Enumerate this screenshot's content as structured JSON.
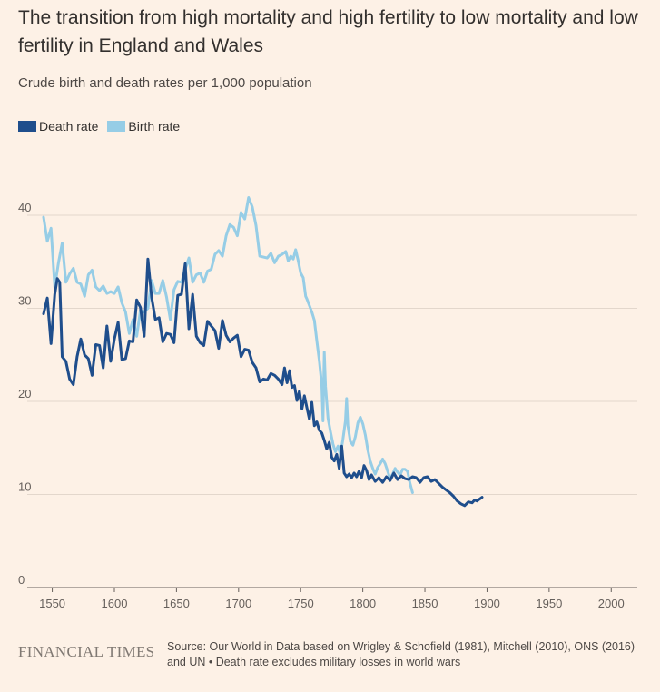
{
  "title": "The transition from high mortality and high fertility to low mortality and low fertility in England and Wales",
  "subtitle": "Crude birth and death rates per 1,000 population",
  "legend": {
    "death": "Death rate",
    "birth": "Birth rate"
  },
  "footer": {
    "logo": "FINANCIAL TIMES",
    "source": "Source: Our World in Data based on Wrigley & Schofield (1981), Mitchell (2010), ONS (2016) and UN • Death rate excludes military losses in world wars"
  },
  "colors": {
    "background": "#fdf1e6",
    "death": "#1f4e8c",
    "birth": "#96cde6",
    "grid": "#e3d7cc",
    "axis": "#66605c",
    "tick_text": "#66605c"
  },
  "chart_data": {
    "type": "line",
    "xlim": [
      1543,
      2021
    ],
    "ylim": [
      0,
      40
    ],
    "x_ticks": [
      1550,
      1600,
      1650,
      1700,
      1750,
      1800,
      1850,
      1900,
      1950,
      2000
    ],
    "y_ticks": [
      0,
      10,
      20,
      30,
      40
    ],
    "grid": true,
    "legend_position": "top-left",
    "series": [
      {
        "name": "Death rate",
        "key": "death",
        "points": [
          [
            1543,
            29.4
          ],
          [
            1546,
            31.1
          ],
          [
            1549,
            26.2
          ],
          [
            1552,
            31.5
          ],
          [
            1554,
            33.2
          ],
          [
            1556,
            32.8
          ],
          [
            1558,
            24.8
          ],
          [
            1561,
            24.3
          ],
          [
            1564,
            22.4
          ],
          [
            1567,
            21.8
          ],
          [
            1570,
            24.8
          ],
          [
            1573,
            26.7
          ],
          [
            1576,
            25.0
          ],
          [
            1579,
            24.6
          ],
          [
            1582,
            22.8
          ],
          [
            1585,
            26.1
          ],
          [
            1588,
            26.0
          ],
          [
            1591,
            23.6
          ],
          [
            1594,
            28.1
          ],
          [
            1597,
            24.3
          ],
          [
            1600,
            26.7
          ],
          [
            1603,
            28.5
          ],
          [
            1606,
            24.5
          ],
          [
            1609,
            24.6
          ],
          [
            1612,
            26.5
          ],
          [
            1615,
            26.4
          ],
          [
            1618,
            30.9
          ],
          [
            1621,
            30.1
          ],
          [
            1624,
            27.0
          ],
          [
            1627,
            35.3
          ],
          [
            1630,
            31.2
          ],
          [
            1633,
            28.8
          ],
          [
            1636,
            29.0
          ],
          [
            1639,
            26.4
          ],
          [
            1642,
            27.3
          ],
          [
            1645,
            27.2
          ],
          [
            1648,
            26.3
          ],
          [
            1651,
            31.4
          ],
          [
            1654,
            31.5
          ],
          [
            1657,
            34.8
          ],
          [
            1660,
            27.8
          ],
          [
            1663,
            31.5
          ],
          [
            1666,
            27.0
          ],
          [
            1669,
            26.3
          ],
          [
            1672,
            26.0
          ],
          [
            1675,
            28.6
          ],
          [
            1678,
            28.1
          ],
          [
            1681,
            27.6
          ],
          [
            1684,
            25.7
          ],
          [
            1687,
            28.7
          ],
          [
            1690,
            27.1
          ],
          [
            1693,
            26.4
          ],
          [
            1696,
            26.8
          ],
          [
            1699,
            27.1
          ],
          [
            1702,
            24.8
          ],
          [
            1705,
            25.6
          ],
          [
            1708,
            25.5
          ],
          [
            1711,
            24.2
          ],
          [
            1714,
            23.6
          ],
          [
            1717,
            22.1
          ],
          [
            1720,
            22.4
          ],
          [
            1723,
            22.3
          ],
          [
            1726,
            23.0
          ],
          [
            1729,
            22.8
          ],
          [
            1732,
            22.4
          ],
          [
            1735,
            21.8
          ],
          [
            1737,
            23.6
          ],
          [
            1739,
            22.0
          ],
          [
            1741,
            23.3
          ],
          [
            1743,
            21.5
          ],
          [
            1745,
            21.7
          ],
          [
            1747,
            20.1
          ],
          [
            1749,
            21.1
          ],
          [
            1751,
            19.2
          ],
          [
            1753,
            20.6
          ],
          [
            1755,
            19.3
          ],
          [
            1757,
            18.1
          ],
          [
            1759,
            19.9
          ],
          [
            1761,
            17.4
          ],
          [
            1763,
            17.8
          ],
          [
            1765,
            16.9
          ],
          [
            1767,
            16.6
          ],
          [
            1769,
            15.8
          ],
          [
            1771,
            14.9
          ],
          [
            1773,
            15.6
          ],
          [
            1775,
            14.0
          ],
          [
            1777,
            13.6
          ],
          [
            1779,
            14.3
          ],
          [
            1781,
            12.8
          ],
          [
            1783,
            15.2
          ],
          [
            1785,
            12.3
          ],
          [
            1787,
            11.9
          ],
          [
            1789,
            12.2
          ],
          [
            1791,
            11.8
          ],
          [
            1793,
            12.3
          ],
          [
            1795,
            11.9
          ],
          [
            1797,
            12.5
          ],
          [
            1799,
            11.8
          ],
          [
            1801,
            13.1
          ],
          [
            1803,
            12.6
          ],
          [
            1805,
            11.6
          ],
          [
            1807,
            12.1
          ],
          [
            1810,
            11.4
          ],
          [
            1813,
            11.8
          ],
          [
            1816,
            11.3
          ],
          [
            1819,
            11.9
          ],
          [
            1822,
            11.5
          ],
          [
            1825,
            12.3
          ],
          [
            1828,
            11.6
          ],
          [
            1831,
            12.0
          ],
          [
            1834,
            11.7
          ],
          [
            1837,
            11.6
          ],
          [
            1840,
            11.9
          ],
          [
            1843,
            11.8
          ],
          [
            1846,
            11.3
          ],
          [
            1849,
            11.8
          ],
          [
            1852,
            11.9
          ],
          [
            1855,
            11.4
          ],
          [
            1858,
            11.6
          ],
          [
            1861,
            11.2
          ],
          [
            1864,
            10.8
          ],
          [
            1867,
            10.5
          ],
          [
            1870,
            10.2
          ],
          [
            1873,
            9.8
          ],
          [
            1876,
            9.3
          ],
          [
            1879,
            9.0
          ],
          [
            1882,
            8.8
          ],
          [
            1885,
            9.2
          ],
          [
            1888,
            9.1
          ],
          [
            1890,
            9.4
          ],
          [
            1892,
            9.3
          ],
          [
            1894,
            9.5
          ],
          [
            1896,
            9.7
          ]
        ]
      },
      {
        "name": "Birth rate",
        "key": "birth",
        "points": [
          [
            1543,
            39.8
          ],
          [
            1546,
            37.2
          ],
          [
            1549,
            38.6
          ],
          [
            1552,
            32.3
          ],
          [
            1555,
            34.9
          ],
          [
            1558,
            37.0
          ],
          [
            1561,
            32.8
          ],
          [
            1564,
            33.7
          ],
          [
            1567,
            34.3
          ],
          [
            1570,
            32.8
          ],
          [
            1573,
            32.6
          ],
          [
            1576,
            31.3
          ],
          [
            1579,
            33.6
          ],
          [
            1582,
            34.1
          ],
          [
            1585,
            32.3
          ],
          [
            1588,
            31.9
          ],
          [
            1591,
            32.4
          ],
          [
            1594,
            31.6
          ],
          [
            1597,
            31.8
          ],
          [
            1600,
            31.6
          ],
          [
            1603,
            32.3
          ],
          [
            1606,
            30.6
          ],
          [
            1609,
            29.6
          ],
          [
            1612,
            27.3
          ],
          [
            1615,
            28.8
          ],
          [
            1618,
            27.0
          ],
          [
            1621,
            29.8
          ],
          [
            1624,
            29.6
          ],
          [
            1627,
            30.0
          ],
          [
            1630,
            33.0
          ],
          [
            1633,
            31.6
          ],
          [
            1636,
            31.6
          ],
          [
            1639,
            33.0
          ],
          [
            1642,
            31.2
          ],
          [
            1645,
            28.8
          ],
          [
            1648,
            32.0
          ],
          [
            1651,
            32.9
          ],
          [
            1654,
            32.8
          ],
          [
            1657,
            34.2
          ],
          [
            1660,
            35.4
          ],
          [
            1663,
            32.8
          ],
          [
            1666,
            33.6
          ],
          [
            1669,
            33.8
          ],
          [
            1672,
            32.8
          ],
          [
            1675,
            34.0
          ],
          [
            1678,
            34.2
          ],
          [
            1681,
            35.8
          ],
          [
            1684,
            36.2
          ],
          [
            1687,
            35.6
          ],
          [
            1690,
            37.8
          ],
          [
            1693,
            39.0
          ],
          [
            1696,
            38.7
          ],
          [
            1699,
            37.8
          ],
          [
            1702,
            40.3
          ],
          [
            1705,
            39.6
          ],
          [
            1708,
            41.9
          ],
          [
            1711,
            40.9
          ],
          [
            1714,
            38.9
          ],
          [
            1717,
            35.6
          ],
          [
            1720,
            35.5
          ],
          [
            1723,
            35.4
          ],
          [
            1726,
            35.9
          ],
          [
            1729,
            34.9
          ],
          [
            1732,
            35.6
          ],
          [
            1735,
            35.8
          ],
          [
            1738,
            36.1
          ],
          [
            1740,
            35.1
          ],
          [
            1742,
            35.6
          ],
          [
            1744,
            35.3
          ],
          [
            1746,
            36.3
          ],
          [
            1748,
            35.1
          ],
          [
            1750,
            33.8
          ],
          [
            1752,
            33.3
          ],
          [
            1754,
            31.3
          ],
          [
            1755,
            31.0
          ],
          [
            1757,
            30.3
          ],
          [
            1759,
            29.6
          ],
          [
            1761,
            28.7
          ],
          [
            1763,
            26.5
          ],
          [
            1765,
            24.4
          ],
          [
            1767,
            21.7
          ],
          [
            1768,
            17.9
          ],
          [
            1769,
            25.3
          ],
          [
            1770,
            21.6
          ],
          [
            1772,
            18.2
          ],
          [
            1774,
            16.7
          ],
          [
            1776,
            15.4
          ],
          [
            1778,
            14.6
          ],
          [
            1780,
            15.2
          ],
          [
            1782,
            14.3
          ],
          [
            1784,
            15.9
          ],
          [
            1786,
            17.9
          ],
          [
            1787,
            20.3
          ],
          [
            1788,
            17.4
          ],
          [
            1790,
            15.7
          ],
          [
            1792,
            15.3
          ],
          [
            1794,
            16.2
          ],
          [
            1796,
            17.7
          ],
          [
            1798,
            18.3
          ],
          [
            1800,
            17.6
          ],
          [
            1802,
            16.4
          ],
          [
            1804,
            14.8
          ],
          [
            1806,
            13.6
          ],
          [
            1808,
            12.8
          ],
          [
            1810,
            12.2
          ],
          [
            1812,
            12.9
          ],
          [
            1814,
            13.3
          ],
          [
            1816,
            13.8
          ],
          [
            1818,
            13.3
          ],
          [
            1820,
            12.5
          ],
          [
            1822,
            11.7
          ],
          [
            1824,
            12.2
          ],
          [
            1826,
            12.8
          ],
          [
            1828,
            12.4
          ],
          [
            1830,
            12.1
          ],
          [
            1832,
            12.7
          ],
          [
            1834,
            12.7
          ],
          [
            1836,
            12.5
          ],
          [
            1838,
            11.2
          ],
          [
            1840,
            10.2
          ]
        ]
      }
    ]
  }
}
